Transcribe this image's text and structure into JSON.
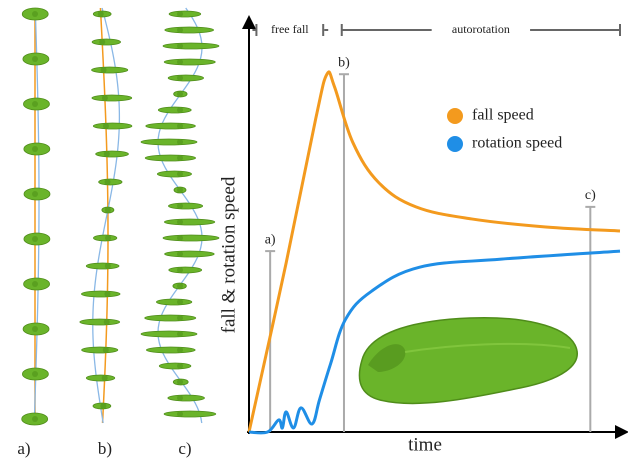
{
  "chart_data": {
    "type": "line",
    "x_label": "time",
    "y_label": "fall & rotation speed",
    "xlim": [
      0,
      100
    ],
    "ylim": [
      0,
      100
    ],
    "phases": [
      {
        "label": "free fall",
        "x": [
          2,
          20
        ]
      },
      {
        "label": "autorotation",
        "x": [
          25,
          100
        ]
      }
    ],
    "markers": [
      {
        "label": "a)",
        "x": 5.7,
        "y": 45
      },
      {
        "label": "b)",
        "x": 25.6,
        "y": 89
      },
      {
        "label": "c)",
        "x": 92,
        "y": 56
      }
    ],
    "series": [
      {
        "name": "fall speed",
        "color": "#f39a1e",
        "x": [
          0,
          10,
          18,
          21,
          23,
          28,
          35,
          45,
          60,
          80,
          100
        ],
        "values": [
          0,
          42,
          78,
          89,
          86,
          72,
          62,
          56,
          53,
          51,
          50
        ]
      },
      {
        "name": "rotation speed",
        "color": "#1f8ee6",
        "x": [
          0,
          5,
          8,
          9,
          10,
          12,
          14,
          17,
          19,
          22,
          26,
          33,
          46,
          68,
          100
        ],
        "values": [
          0,
          0,
          3,
          1,
          5,
          1,
          6,
          2,
          8,
          17,
          28,
          35,
          41,
          43,
          45
        ]
      }
    ],
    "panels": [
      "a)",
      "b)",
      "c)"
    ]
  }
}
